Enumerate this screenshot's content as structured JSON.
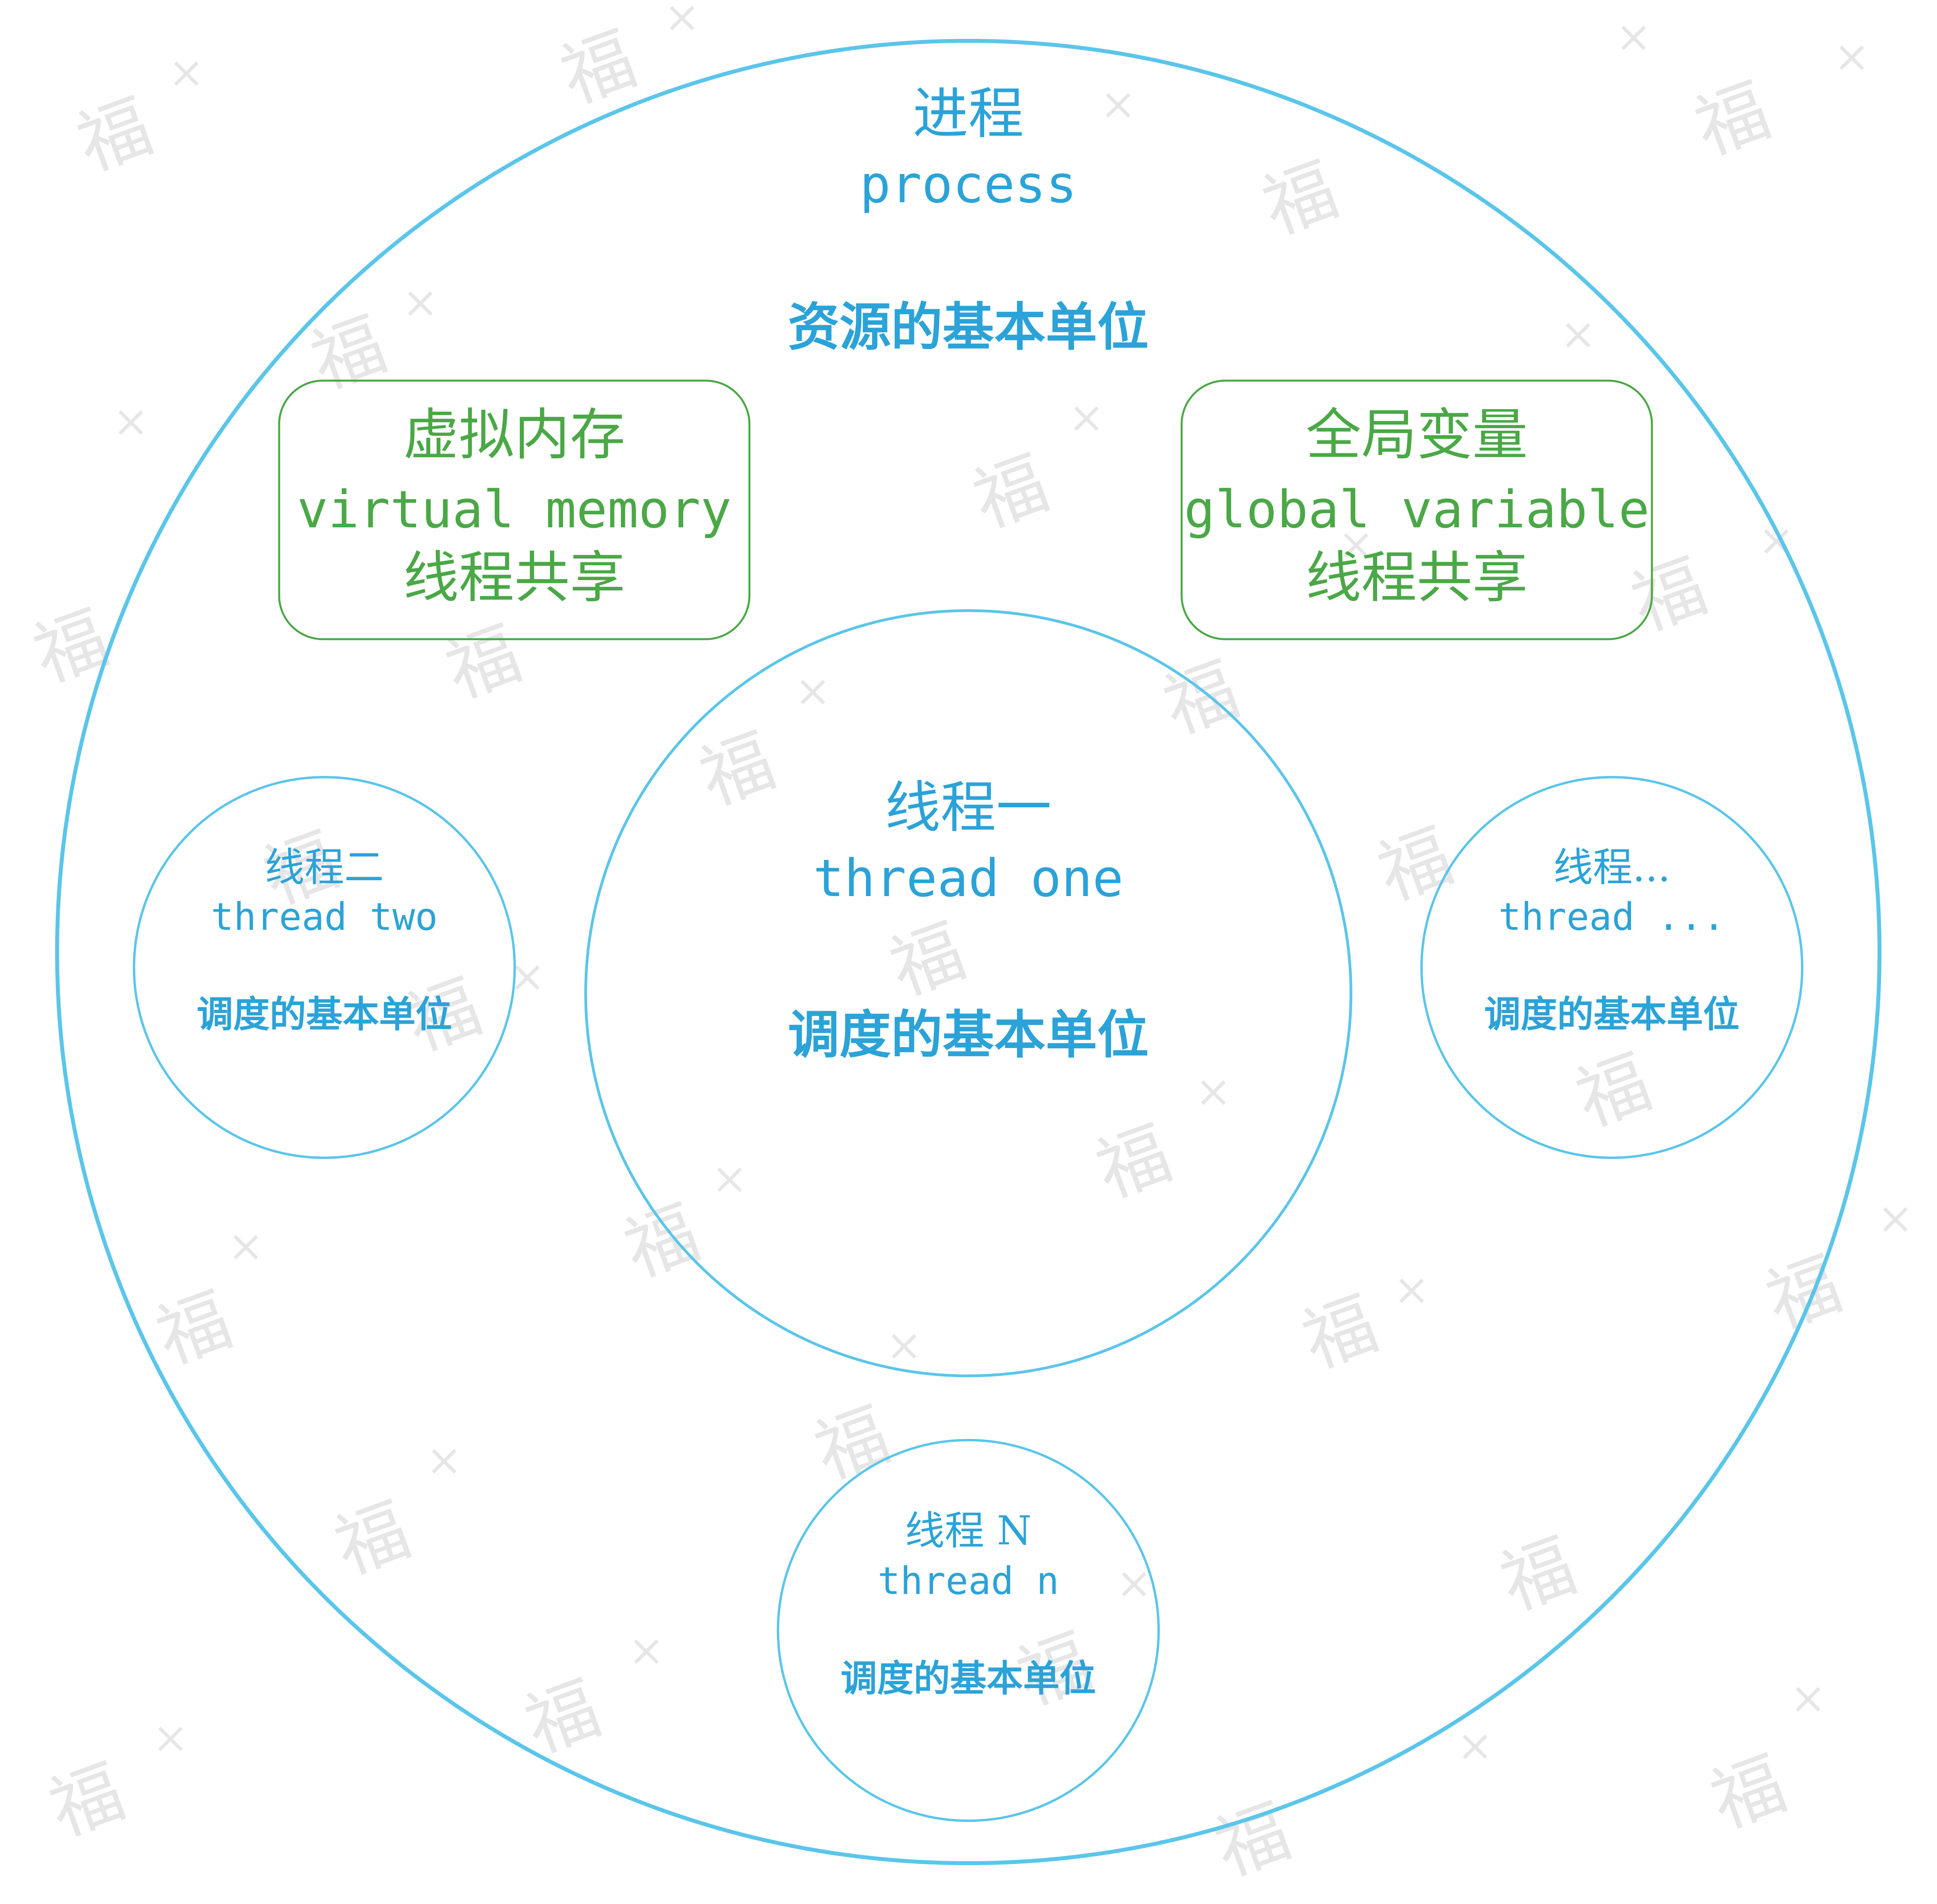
{
  "colors": {
    "blue": "#5bc5ea",
    "blue_text": "#2ba3d8",
    "green": "#4aa846",
    "watermark": "#e6e6e6",
    "background": "#ffffff"
  },
  "watermark": {
    "glyph": "福",
    "cross": "×"
  },
  "process": {
    "title_cn": "进程",
    "title_en": "process",
    "subtitle": "资源的基本单位"
  },
  "shared": {
    "virtual_memory": {
      "title_cn": "虚拟内存",
      "title_en": "virtual memory",
      "note": "线程共享"
    },
    "global_variable": {
      "title_cn": "全局变量",
      "title_en": "global variable",
      "note": "线程共享"
    }
  },
  "threads": {
    "one": {
      "title_cn": "线程一",
      "title_en": "thread one",
      "note": "调度的基本单位"
    },
    "two": {
      "title_cn": "线程二",
      "title_en": "thread two",
      "note": "调度的基本单位"
    },
    "more": {
      "title_cn": "线程...",
      "title_en": "thread ...",
      "note": "调度的基本单位"
    },
    "n": {
      "title_cn": "线程 N",
      "title_en": "thread n",
      "note": "调度的基本单位"
    }
  }
}
